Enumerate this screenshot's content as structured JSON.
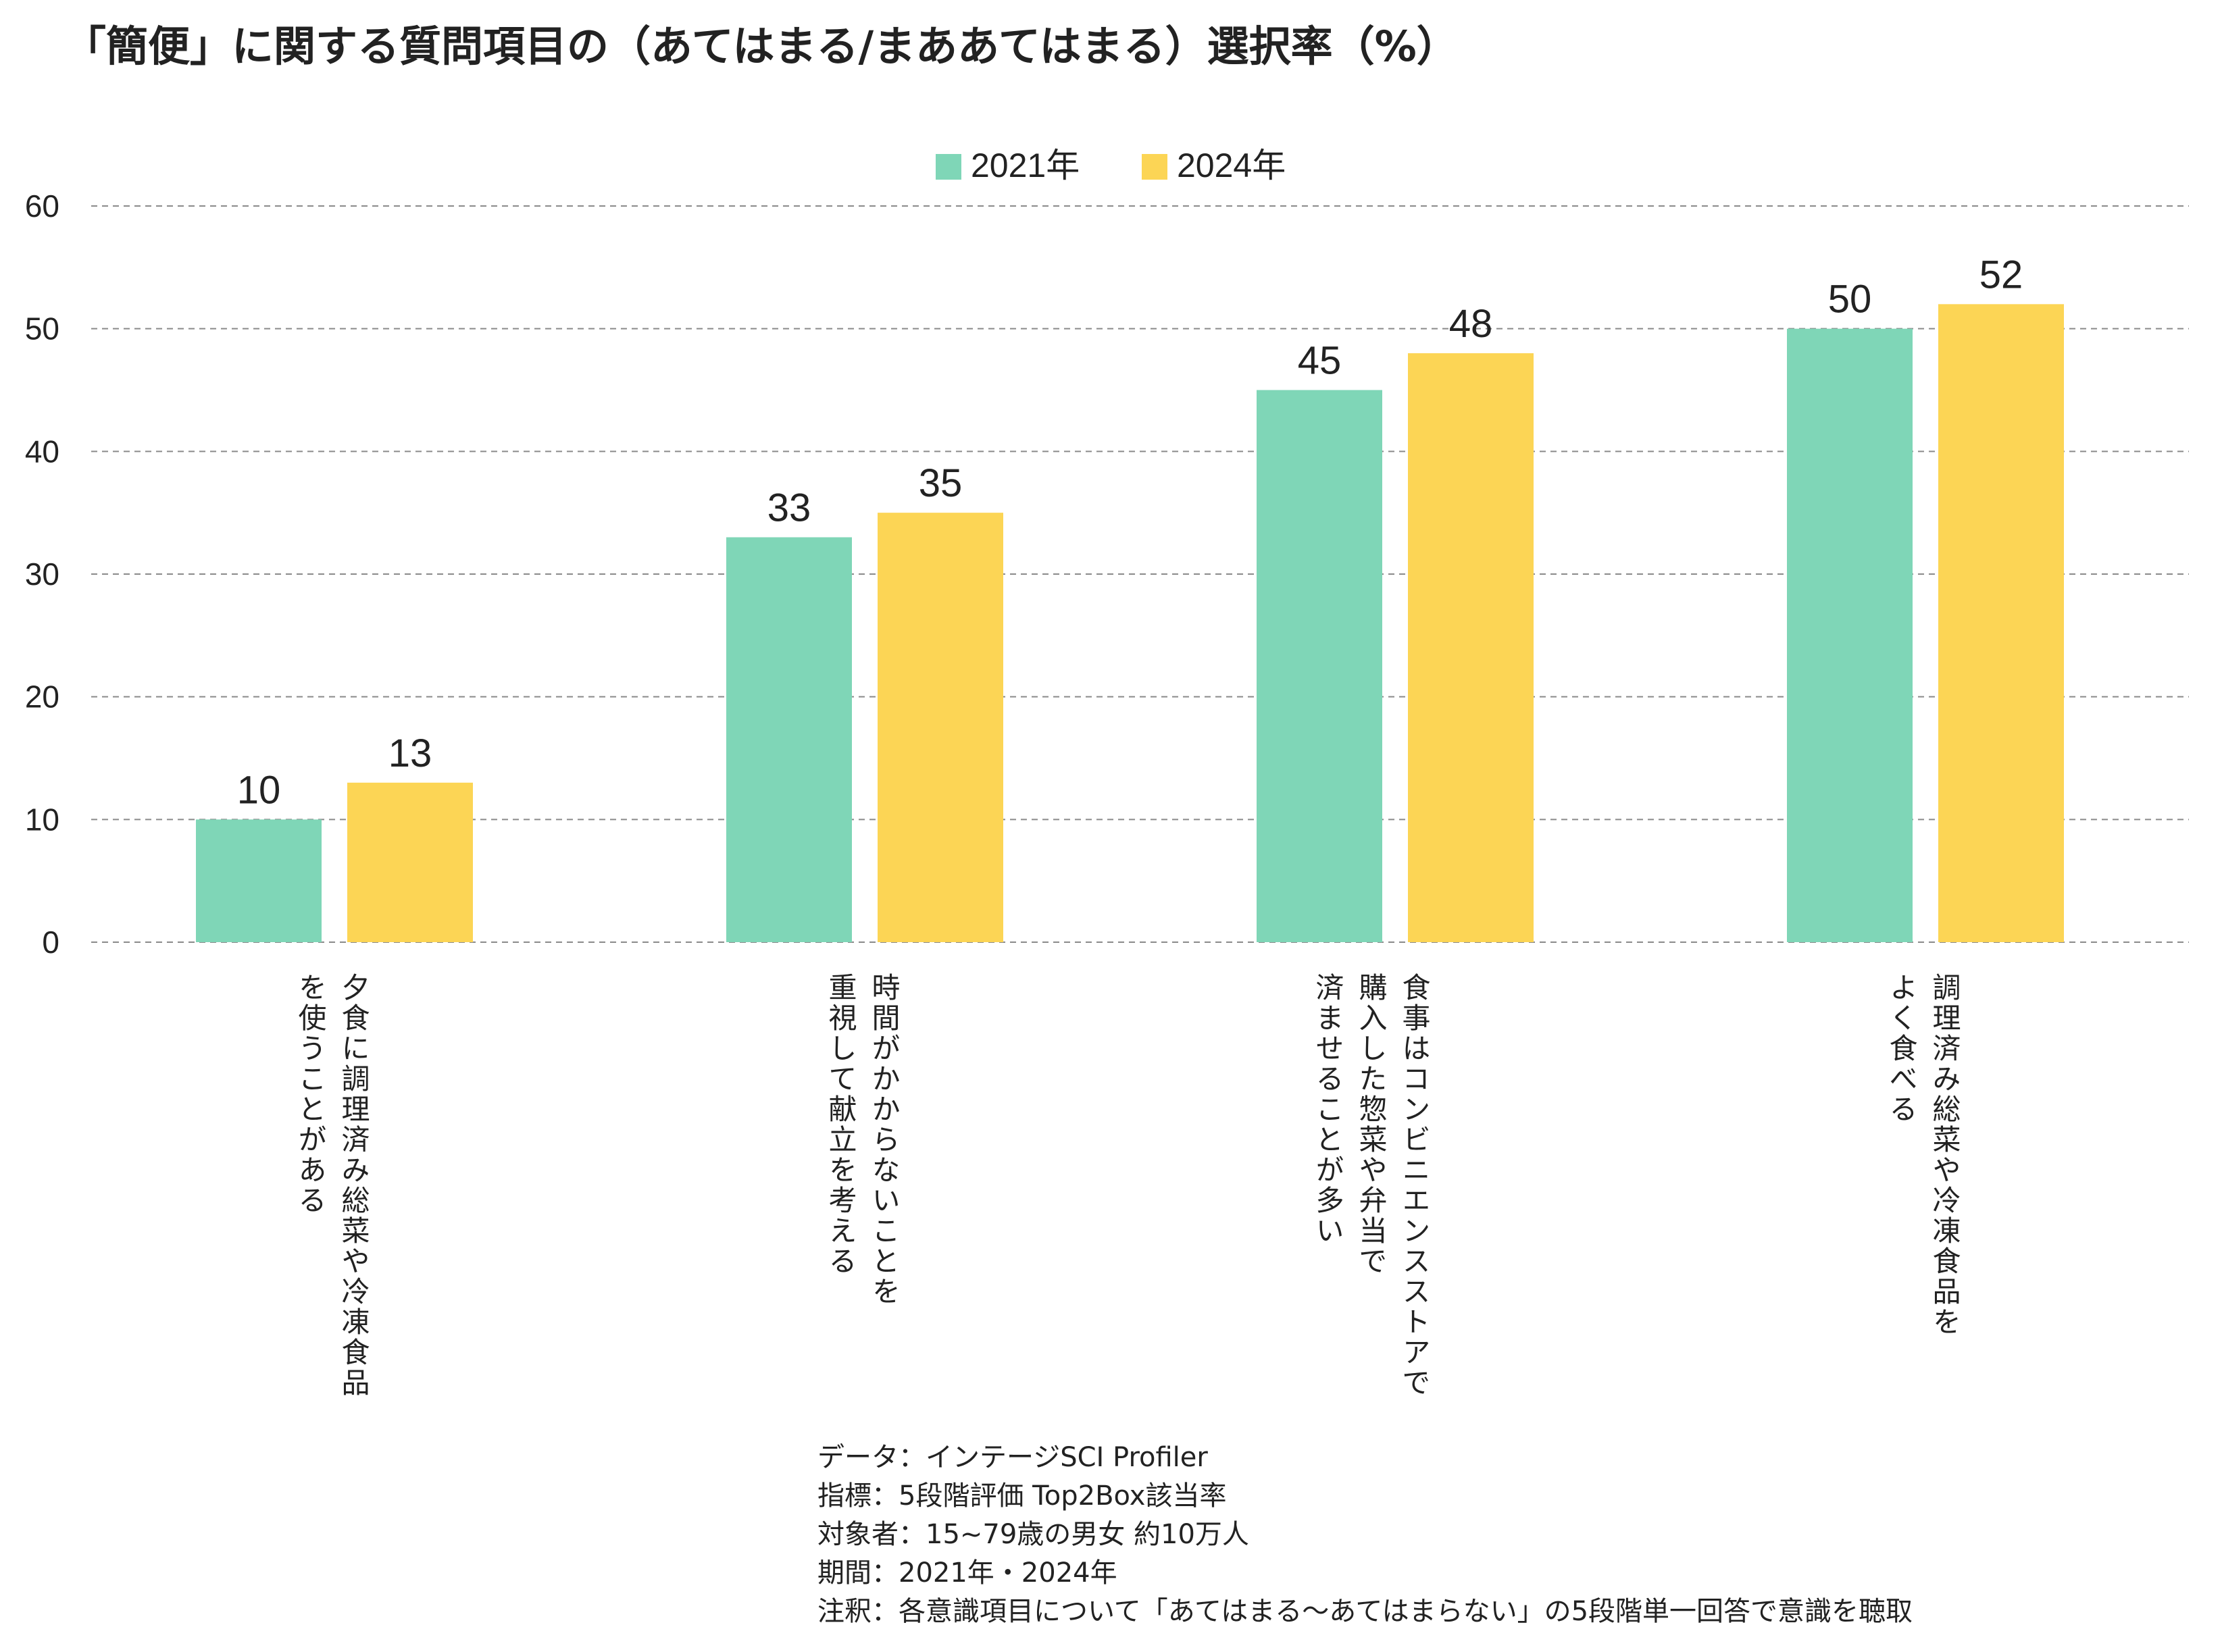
{
  "chart_data": {
    "type": "bar",
    "title": "「簡便」に関する質問項目の（あてはまる/まああてはまる）選択率（%）",
    "categories": [
      "夕食に調理済み総菜や冷凍食品\nを使うことがある",
      "時間がかからないことを\n重視して献立を考える",
      "食事はコンビニエンスストアで\n購入した惣菜や弁当で\n済ませることが多い",
      "調理済み総菜や冷凍食品を\nよく食べる"
    ],
    "series": [
      {
        "name": "2021年",
        "values": [
          10,
          33,
          45,
          50
        ],
        "display": [
          "10",
          "33",
          "45",
          "50"
        ],
        "color": "#7fd6b7"
      },
      {
        "name": "2024年",
        "values": [
          13,
          35,
          48,
          52
        ],
        "display": [
          "13",
          "35",
          "48",
          "52"
        ],
        "color": "#fcd555"
      }
    ],
    "ylim": [
      0,
      60
    ],
    "yticks": [
      "0",
      "10",
      "20",
      "30",
      "40",
      "50",
      "60"
    ],
    "grid": true,
    "legend_position": "top-center"
  },
  "notes": [
    "データ：インテージSCI Profiler",
    "指標：5段階評価 Top2Box該当率",
    "対象者：15~79歳の男女 約10万人",
    "期間：2021年・2024年",
    "注釈：各意識項目について「あてはまる～あてはまらない」の5段階単一回答で意識を聴取"
  ]
}
